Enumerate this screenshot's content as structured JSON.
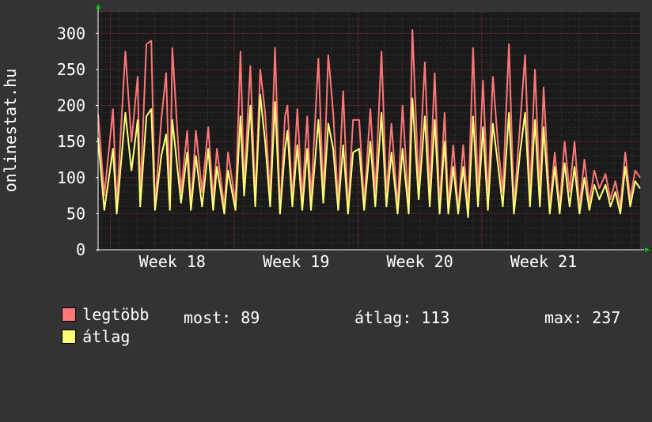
{
  "side_label": "onlinestat.hu",
  "colors": {
    "background": "#333333",
    "plot_background": "#1a1a1a",
    "major_grid": "#7a2f2f",
    "minor_grid": "#4a3a3a",
    "axis": "#ffffff",
    "arrow": "#00cc00",
    "max_series": "#ff7777",
    "avg_series": "#ffff77"
  },
  "legend": {
    "max_label": "legtöbb",
    "avg_label": "átlag",
    "stats": {
      "now": "most: 89",
      "avg": "átlag: 113",
      "max": "max: 237"
    }
  },
  "chart_data": {
    "type": "line",
    "title": "",
    "ylabel": "onlinestat.hu",
    "ylim": [
      0,
      330
    ],
    "yticks": [
      0,
      50,
      100,
      150,
      200,
      250,
      300
    ],
    "xlim": [
      17.4,
      21.78
    ],
    "x_ticks": [
      {
        "x": 18,
        "label": "Week 18"
      },
      {
        "x": 19,
        "label": "Week 19"
      },
      {
        "x": 20,
        "label": "Week 20"
      },
      {
        "x": 21,
        "label": "Week 21"
      }
    ],
    "grid": true,
    "series": [
      {
        "name": "legtöbb",
        "x": [
          17.4,
          17.45,
          17.52,
          17.55,
          17.62,
          17.67,
          17.72,
          17.74,
          17.79,
          17.83,
          17.86,
          17.91,
          17.95,
          17.98,
          18.0,
          18.07,
          18.12,
          18.15,
          18.19,
          18.24,
          18.29,
          18.33,
          18.36,
          18.42,
          18.45,
          18.51,
          18.55,
          18.58,
          18.63,
          18.67,
          18.71,
          18.75,
          18.79,
          18.83,
          18.87,
          18.91,
          18.93,
          18.97,
          19.01,
          19.05,
          19.09,
          19.12,
          19.18,
          19.22,
          19.26,
          19.3,
          19.34,
          19.38,
          19.42,
          19.46,
          19.51,
          19.55,
          19.6,
          19.64,
          19.69,
          19.73,
          19.77,
          19.82,
          19.86,
          19.91,
          19.94,
          19.99,
          20.04,
          20.08,
          20.12,
          20.16,
          20.2,
          20.23,
          20.27,
          20.31,
          20.35,
          20.39,
          20.43,
          20.47,
          20.51,
          20.55,
          20.59,
          20.63,
          20.67,
          20.72,
          20.76,
          20.81,
          20.85,
          20.89,
          20.93,
          20.97,
          21.0,
          21.05,
          21.09,
          21.13,
          21.17,
          21.21,
          21.25,
          21.29,
          21.33,
          21.37,
          21.41,
          21.45,
          21.5,
          21.54,
          21.58,
          21.62,
          21.66,
          21.7,
          21.74,
          21.78
        ],
        "values": [
          188,
          75,
          195,
          60,
          275,
          150,
          240,
          75,
          285,
          290,
          60,
          180,
          245,
          60,
          280,
          80,
          165,
          60,
          165,
          80,
          170,
          70,
          140,
          60,
          135,
          65,
          275,
          90,
          255,
          70,
          250,
          190,
          75,
          280,
          55,
          185,
          200,
          70,
          195,
          70,
          185,
          70,
          265,
          75,
          270,
          190,
          65,
          220,
          55,
          180,
          180,
          65,
          195,
          80,
          275,
          75,
          175,
          60,
          200,
          60,
          305,
          90,
          260,
          80,
          245,
          60,
          190,
          60,
          145,
          55,
          145,
          55,
          280,
          80,
          235,
          70,
          240,
          150,
          80,
          285,
          60,
          175,
          270,
          75,
          250,
          80,
          225,
          60,
          135,
          60,
          150,
          80,
          150,
          60,
          125,
          65,
          110,
          85,
          105,
          70,
          95,
          60,
          135,
          70,
          110,
          100
        ]
      },
      {
        "name": "átlag",
        "x": [
          17.4,
          17.45,
          17.52,
          17.55,
          17.62,
          17.67,
          17.72,
          17.74,
          17.79,
          17.83,
          17.86,
          17.91,
          17.95,
          17.98,
          18.0,
          18.07,
          18.12,
          18.15,
          18.19,
          18.24,
          18.29,
          18.33,
          18.36,
          18.42,
          18.45,
          18.51,
          18.55,
          18.58,
          18.63,
          18.67,
          18.71,
          18.75,
          18.79,
          18.83,
          18.87,
          18.91,
          18.93,
          18.97,
          19.01,
          19.05,
          19.09,
          19.12,
          19.18,
          19.22,
          19.26,
          19.3,
          19.34,
          19.38,
          19.42,
          19.46,
          19.51,
          19.55,
          19.6,
          19.64,
          19.69,
          19.73,
          19.77,
          19.82,
          19.86,
          19.91,
          19.94,
          19.99,
          20.04,
          20.08,
          20.12,
          20.16,
          20.2,
          20.23,
          20.27,
          20.31,
          20.35,
          20.39,
          20.43,
          20.47,
          20.51,
          20.55,
          20.59,
          20.63,
          20.67,
          20.72,
          20.76,
          20.81,
          20.85,
          20.89,
          20.93,
          20.97,
          21.0,
          21.05,
          21.09,
          21.13,
          21.17,
          21.21,
          21.25,
          21.29,
          21.33,
          21.37,
          21.41,
          21.45,
          21.5,
          21.54,
          21.58,
          21.62,
          21.66,
          21.7,
          21.74,
          21.78
        ],
        "values": [
          155,
          55,
          140,
          50,
          190,
          110,
          180,
          60,
          185,
          195,
          55,
          130,
          160,
          55,
          180,
          65,
          135,
          55,
          130,
          60,
          140,
          55,
          115,
          50,
          110,
          55,
          185,
          75,
          200,
          60,
          215,
          150,
          60,
          205,
          50,
          140,
          165,
          60,
          145,
          55,
          140,
          55,
          180,
          65,
          175,
          140,
          55,
          145,
          50,
          135,
          140,
          55,
          150,
          60,
          190,
          60,
          135,
          50,
          140,
          50,
          210,
          70,
          185,
          60,
          180,
          50,
          150,
          50,
          115,
          50,
          115,
          45,
          185,
          60,
          170,
          55,
          175,
          120,
          60,
          190,
          50,
          135,
          190,
          60,
          180,
          60,
          170,
          50,
          115,
          50,
          120,
          60,
          115,
          50,
          100,
          55,
          90,
          70,
          90,
          60,
          80,
          50,
          115,
          60,
          95,
          85
        ]
      }
    ]
  }
}
